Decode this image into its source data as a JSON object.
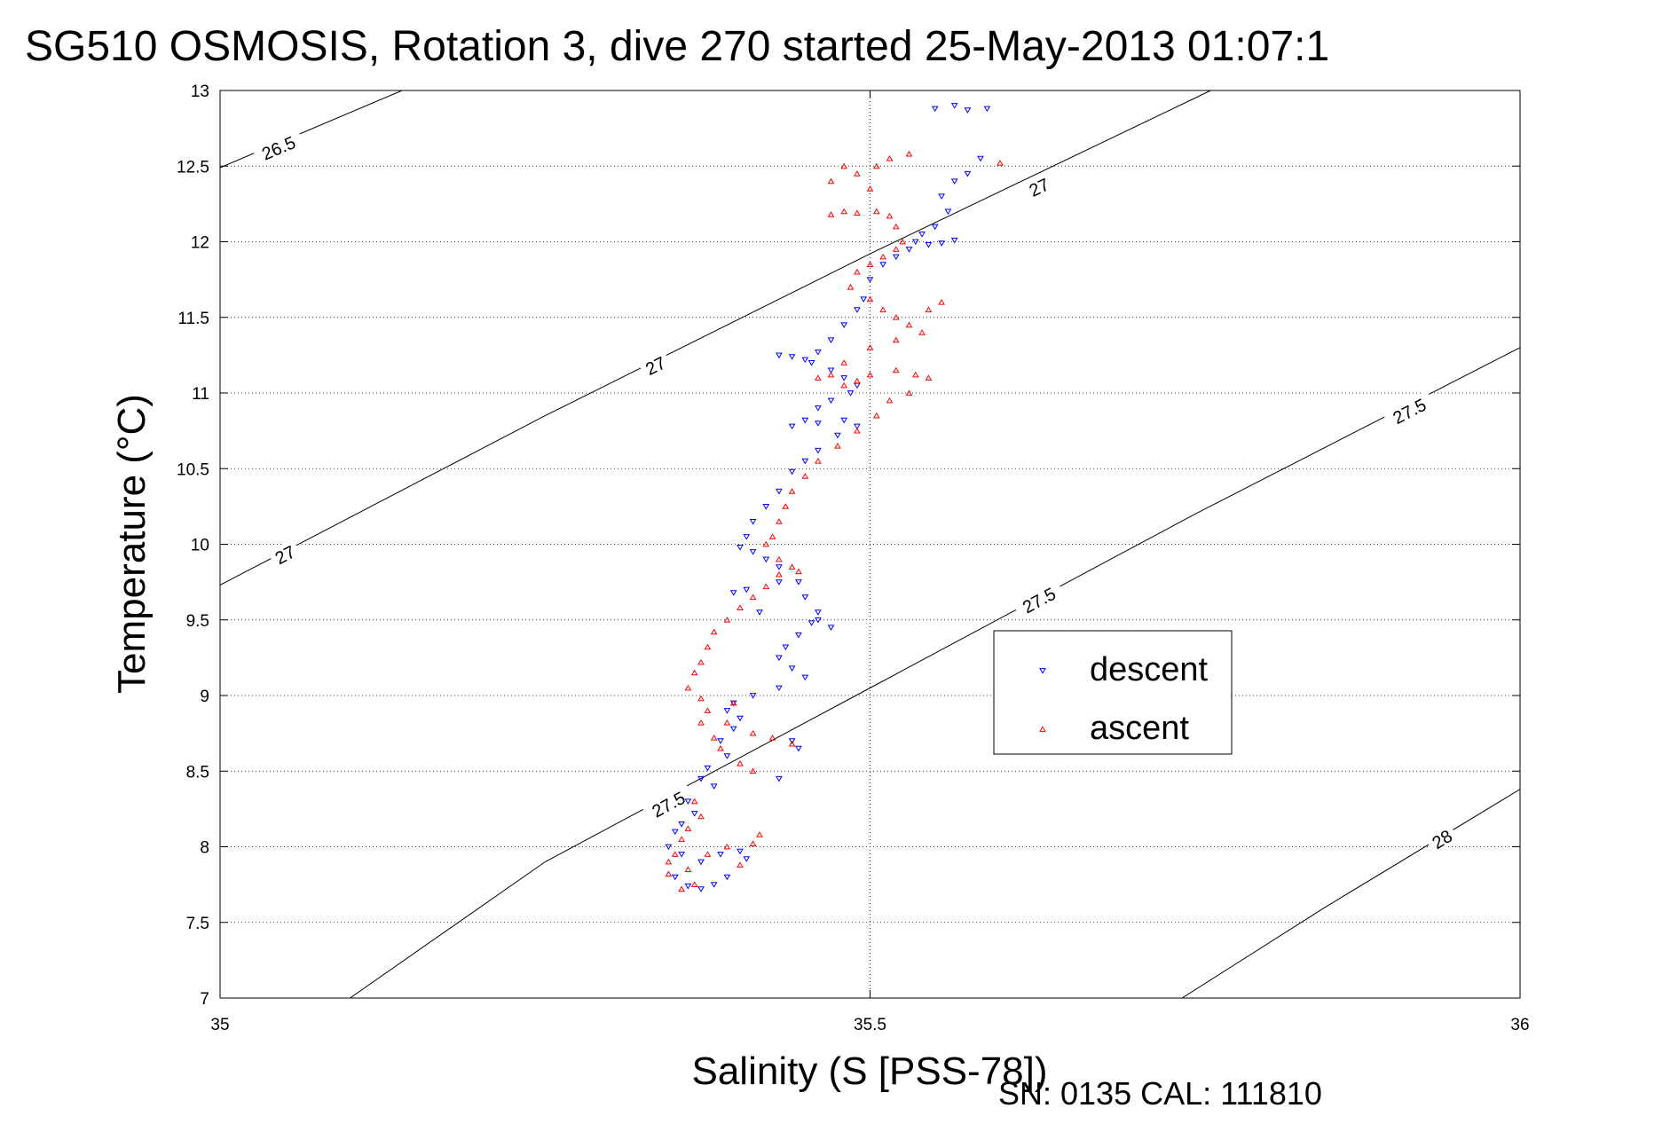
{
  "chart_data": {
    "type": "scatter",
    "title": "SG510 OSMOSIS, Rotation 3, dive 270 started 25-May-2013 01:07:1",
    "xlabel": "Salinity (S [PSS-78])",
    "ylabel": "Temperature (°C)",
    "xlim": [
      35,
      36
    ],
    "ylim": [
      7,
      13
    ],
    "xticks": [
      35,
      35.5,
      36
    ],
    "xtick_labels": [
      "35",
      "35.5",
      "36"
    ],
    "yticks": [
      7,
      7.5,
      8,
      8.5,
      9,
      9.5,
      10,
      10.5,
      11,
      11.5,
      12,
      12.5,
      13
    ],
    "ytick_labels": [
      "7",
      "7.5",
      "8",
      "8.5",
      "9",
      "9.5",
      "10",
      "10.5",
      "11",
      "11.5",
      "12",
      "12.5",
      "13"
    ],
    "grid": true,
    "legend_position": "right",
    "footer": "SN: 0135  CAL: 111810",
    "density_contours": [
      {
        "label": "26.5",
        "points": [
          [
            35.0,
            12.49
          ],
          [
            35.14,
            13.0
          ]
        ],
        "label_at": [
          [
            35.045,
            12.62
          ]
        ]
      },
      {
        "label": "27",
        "points": [
          [
            35.0,
            9.73
          ],
          [
            35.25,
            10.85
          ],
          [
            35.5,
            11.92
          ],
          [
            35.75,
            12.95
          ],
          [
            35.762,
            13.0
          ]
        ],
        "label_at": [
          [
            35.05,
            9.93
          ],
          [
            35.335,
            11.18
          ],
          [
            35.63,
            12.36
          ]
        ]
      },
      {
        "label": "27.5",
        "points": [
          [
            35.1,
            7.0
          ],
          [
            35.25,
            7.9
          ],
          [
            35.5,
            9.05
          ],
          [
            35.75,
            10.2
          ],
          [
            36.0,
            11.3
          ]
        ],
        "label_at": [
          [
            35.345,
            8.28
          ],
          [
            35.63,
            9.63
          ],
          [
            35.915,
            10.88
          ]
        ]
      },
      {
        "label": "28",
        "points": [
          [
            35.74,
            7.0
          ],
          [
            35.85,
            7.6
          ],
          [
            36.0,
            8.38
          ]
        ],
        "label_at": [
          [
            35.94,
            8.05
          ]
        ]
      }
    ],
    "series": [
      {
        "name": "descent",
        "color": "#0000ff",
        "marker": "triangle-down",
        "points": [
          [
            35.55,
            12.88
          ],
          [
            35.565,
            12.9
          ],
          [
            35.575,
            12.87
          ],
          [
            35.59,
            12.88
          ],
          [
            35.585,
            12.55
          ],
          [
            35.575,
            12.45
          ],
          [
            35.565,
            12.4
          ],
          [
            35.555,
            12.3
          ],
          [
            35.56,
            12.2
          ],
          [
            35.55,
            12.1
          ],
          [
            35.54,
            12.05
          ],
          [
            35.535,
            12.0
          ],
          [
            35.545,
            11.98
          ],
          [
            35.555,
            11.99
          ],
          [
            35.565,
            12.01
          ],
          [
            35.53,
            11.95
          ],
          [
            35.52,
            11.9
          ],
          [
            35.51,
            11.85
          ],
          [
            35.5,
            11.75
          ],
          [
            35.495,
            11.62
          ],
          [
            35.49,
            11.55
          ],
          [
            35.48,
            11.45
          ],
          [
            35.47,
            11.35
          ],
          [
            35.46,
            11.27
          ],
          [
            35.45,
            11.22
          ],
          [
            35.44,
            11.24
          ],
          [
            35.43,
            11.25
          ],
          [
            35.455,
            11.2
          ],
          [
            35.47,
            11.15
          ],
          [
            35.48,
            11.1
          ],
          [
            35.49,
            11.05
          ],
          [
            35.485,
            11.0
          ],
          [
            35.47,
            10.95
          ],
          [
            35.46,
            10.9
          ],
          [
            35.45,
            10.82
          ],
          [
            35.44,
            10.78
          ],
          [
            35.46,
            10.8
          ],
          [
            35.48,
            10.82
          ],
          [
            35.49,
            10.78
          ],
          [
            35.475,
            10.72
          ],
          [
            35.46,
            10.62
          ],
          [
            35.45,
            10.55
          ],
          [
            35.44,
            10.48
          ],
          [
            35.43,
            10.35
          ],
          [
            35.42,
            10.25
          ],
          [
            35.41,
            10.15
          ],
          [
            35.405,
            10.05
          ],
          [
            35.4,
            9.98
          ],
          [
            35.41,
            9.95
          ],
          [
            35.42,
            9.9
          ],
          [
            35.43,
            9.85
          ],
          [
            35.445,
            9.75
          ],
          [
            35.45,
            9.65
          ],
          [
            35.46,
            9.55
          ],
          [
            35.455,
            9.48
          ],
          [
            35.445,
            9.4
          ],
          [
            35.435,
            9.32
          ],
          [
            35.43,
            9.25
          ],
          [
            35.44,
            9.18
          ],
          [
            35.45,
            9.12
          ],
          [
            35.43,
            9.05
          ],
          [
            35.41,
            9.0
          ],
          [
            35.395,
            8.95
          ],
          [
            35.39,
            8.9
          ],
          [
            35.4,
            8.85
          ],
          [
            35.395,
            8.78
          ],
          [
            35.385,
            8.7
          ],
          [
            35.39,
            8.6
          ],
          [
            35.375,
            8.52
          ],
          [
            35.37,
            8.45
          ],
          [
            35.38,
            8.4
          ],
          [
            35.36,
            8.3
          ],
          [
            35.365,
            8.22
          ],
          [
            35.355,
            8.15
          ],
          [
            35.35,
            8.1
          ],
          [
            35.345,
            8.0
          ],
          [
            35.355,
            7.95
          ],
          [
            35.37,
            7.9
          ],
          [
            35.385,
            7.95
          ],
          [
            35.4,
            7.97
          ],
          [
            35.405,
            7.92
          ],
          [
            35.39,
            7.8
          ],
          [
            35.38,
            7.75
          ],
          [
            35.37,
            7.72
          ],
          [
            35.36,
            7.74
          ],
          [
            35.35,
            7.8
          ],
          [
            35.44,
            8.7
          ],
          [
            35.445,
            8.65
          ],
          [
            35.43,
            8.45
          ],
          [
            35.46,
            9.5
          ],
          [
            35.47,
            9.45
          ],
          [
            35.415,
            9.55
          ],
          [
            35.405,
            9.7
          ],
          [
            35.395,
            9.68
          ],
          [
            35.43,
            9.75
          ]
        ]
      },
      {
        "name": "ascent",
        "color": "#ff0000",
        "marker": "triangle-up",
        "points": [
          [
            35.6,
            12.52
          ],
          [
            35.505,
            12.5
          ],
          [
            35.515,
            12.55
          ],
          [
            35.53,
            12.58
          ],
          [
            35.5,
            12.35
          ],
          [
            35.48,
            12.2
          ],
          [
            35.47,
            12.18
          ],
          [
            35.49,
            12.19
          ],
          [
            35.505,
            12.2
          ],
          [
            35.515,
            12.17
          ],
          [
            35.52,
            12.1
          ],
          [
            35.525,
            12.0
          ],
          [
            35.52,
            11.95
          ],
          [
            35.51,
            11.9
          ],
          [
            35.5,
            11.85
          ],
          [
            35.49,
            11.8
          ],
          [
            35.485,
            11.7
          ],
          [
            35.5,
            11.62
          ],
          [
            35.51,
            11.55
          ],
          [
            35.52,
            11.5
          ],
          [
            35.53,
            11.45
          ],
          [
            35.545,
            11.55
          ],
          [
            35.555,
            11.6
          ],
          [
            35.54,
            11.4
          ],
          [
            35.52,
            11.35
          ],
          [
            35.5,
            11.3
          ],
          [
            35.48,
            11.2
          ],
          [
            35.47,
            11.12
          ],
          [
            35.46,
            11.1
          ],
          [
            35.48,
            11.05
          ],
          [
            35.49,
            11.08
          ],
          [
            35.5,
            11.12
          ],
          [
            35.52,
            11.15
          ],
          [
            35.535,
            11.12
          ],
          [
            35.545,
            11.1
          ],
          [
            35.53,
            11.0
          ],
          [
            35.515,
            10.95
          ],
          [
            35.505,
            10.85
          ],
          [
            35.49,
            10.75
          ],
          [
            35.475,
            10.65
          ],
          [
            35.46,
            10.55
          ],
          [
            35.45,
            10.45
          ],
          [
            35.44,
            10.35
          ],
          [
            35.435,
            10.25
          ],
          [
            35.43,
            10.15
          ],
          [
            35.425,
            10.05
          ],
          [
            35.42,
            10.0
          ],
          [
            35.43,
            9.9
          ],
          [
            35.44,
            9.85
          ],
          [
            35.445,
            9.82
          ],
          [
            35.43,
            9.8
          ],
          [
            35.42,
            9.72
          ],
          [
            35.41,
            9.65
          ],
          [
            35.4,
            9.58
          ],
          [
            35.39,
            9.5
          ],
          [
            35.38,
            9.42
          ],
          [
            35.375,
            9.32
          ],
          [
            35.37,
            9.22
          ],
          [
            35.365,
            9.15
          ],
          [
            35.36,
            9.05
          ],
          [
            35.37,
            8.98
          ],
          [
            35.375,
            8.9
          ],
          [
            35.37,
            8.82
          ],
          [
            35.38,
            8.72
          ],
          [
            35.385,
            8.65
          ],
          [
            35.41,
            8.75
          ],
          [
            35.425,
            8.72
          ],
          [
            35.44,
            8.68
          ],
          [
            35.4,
            8.55
          ],
          [
            35.41,
            8.5
          ],
          [
            35.365,
            8.3
          ],
          [
            35.37,
            8.2
          ],
          [
            35.36,
            8.12
          ],
          [
            35.355,
            8.05
          ],
          [
            35.35,
            7.95
          ],
          [
            35.345,
            7.9
          ],
          [
            35.36,
            7.85
          ],
          [
            35.375,
            7.95
          ],
          [
            35.39,
            8.0
          ],
          [
            35.41,
            8.02
          ],
          [
            35.415,
            8.08
          ],
          [
            35.4,
            7.88
          ],
          [
            35.365,
            7.75
          ],
          [
            35.355,
            7.72
          ],
          [
            35.345,
            7.82
          ],
          [
            35.39,
            8.82
          ],
          [
            35.395,
            8.95
          ],
          [
            35.47,
            12.4
          ],
          [
            35.48,
            12.5
          ],
          [
            35.49,
            12.45
          ]
        ]
      }
    ]
  }
}
